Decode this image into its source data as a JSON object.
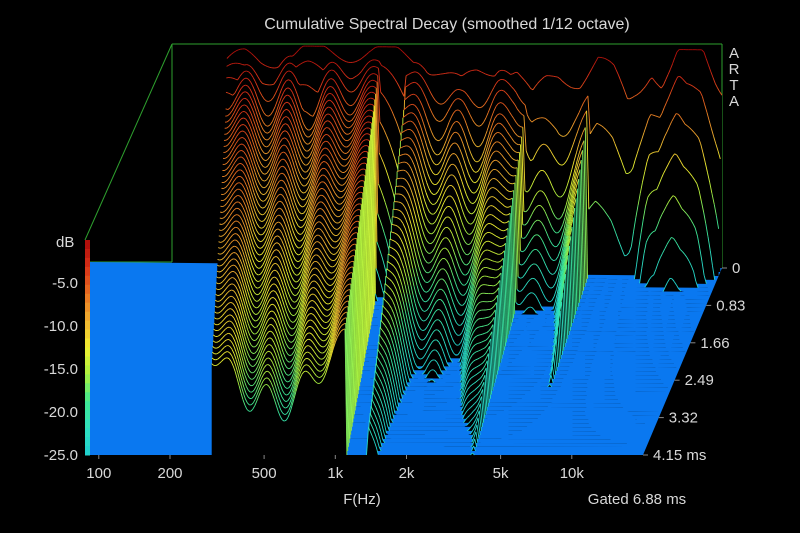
{
  "chart_data": {
    "type": "waterfall-3d",
    "title": "Cumulative Spectral Decay (smoothed 1/12 octave)",
    "brand": [
      "A",
      "R",
      "T",
      "A"
    ],
    "xlabel": "F(Hz)",
    "x_scale": "log",
    "x_ticks": [
      {
        "value": 100,
        "label": "100"
      },
      {
        "value": 200,
        "label": "200"
      },
      {
        "value": 500,
        "label": "500"
      },
      {
        "value": 1000,
        "label": "1k"
      },
      {
        "value": 2000,
        "label": "2k"
      },
      {
        "value": 5000,
        "label": "5k"
      },
      {
        "value": 10000,
        "label": "10k"
      }
    ],
    "x_range_hz": [
      90,
      20000
    ],
    "z_label": "ms",
    "z_ticks": [
      {
        "value": 0,
        "label": "0"
      },
      {
        "value": 0.83,
        "label": "0.83"
      },
      {
        "value": 1.66,
        "label": "1.66"
      },
      {
        "value": 2.49,
        "label": "2.49"
      },
      {
        "value": 3.32,
        "label": "3.32"
      },
      {
        "value": 4.15,
        "label": "4.15 ms"
      }
    ],
    "z_range_ms": [
      0,
      4.15
    ],
    "y_label": "dB",
    "y_ticks": [
      {
        "value": -5,
        "label": "-5.0"
      },
      {
        "value": -10,
        "label": "-10.0"
      },
      {
        "value": -15,
        "label": "-15.0"
      },
      {
        "value": -20,
        "label": "-20.0"
      },
      {
        "value": -25,
        "label": "-25.0"
      }
    ],
    "y_range_db": [
      -25,
      0
    ],
    "gate_label": "Gated 6.88 ms",
    "slice_count": 48,
    "low_cutoff_hz": 300,
    "initial_response_db": [
      [
        300,
        -2
      ],
      [
        350,
        -1.5
      ],
      [
        400,
        -1.8
      ],
      [
        500,
        -1
      ],
      [
        600,
        -0.5
      ],
      [
        700,
        -0.8
      ],
      [
        800,
        -0.7
      ],
      [
        1000,
        -0.5
      ],
      [
        1200,
        -0.8
      ],
      [
        1500,
        -1.2
      ],
      [
        1800,
        -2.5
      ],
      [
        2000,
        -3.5
      ],
      [
        2200,
        -4.5
      ],
      [
        2500,
        -3
      ],
      [
        3000,
        -2
      ],
      [
        3500,
        -2.5
      ],
      [
        4000,
        -6
      ],
      [
        4500,
        -4
      ],
      [
        5000,
        -3
      ],
      [
        6000,
        -3.5
      ],
      [
        7000,
        -1.5
      ],
      [
        8000,
        -3
      ],
      [
        9000,
        -6
      ],
      [
        10000,
        -4
      ],
      [
        11000,
        -2
      ],
      [
        12000,
        -4
      ],
      [
        13000,
        -2.5
      ],
      [
        14000,
        -0.5
      ],
      [
        15000,
        -1
      ],
      [
        17000,
        0
      ],
      [
        19000,
        -3
      ],
      [
        20000,
        -4
      ]
    ],
    "decay_peaks": [
      {
        "f_hz": 550,
        "width_oct": 1.2,
        "depth_db": -4,
        "tau_ms": 1.2
      },
      {
        "f_hz": 2300,
        "width_oct": 0.9,
        "depth_db": -6,
        "tau_ms": 0.5
      },
      {
        "f_hz": 4600,
        "width_oct": 0.6,
        "depth_db": -12,
        "tau_ms": 0.3
      }
    ],
    "colormap": [
      "#1ecfd0",
      "#2fe0c0",
      "#40e890",
      "#a8f040",
      "#f0f030",
      "#f0b030",
      "#e87020",
      "#d83018",
      "#a80808"
    ],
    "floor_color": "#0a78f0",
    "frame_color": "#2ea02e"
  }
}
